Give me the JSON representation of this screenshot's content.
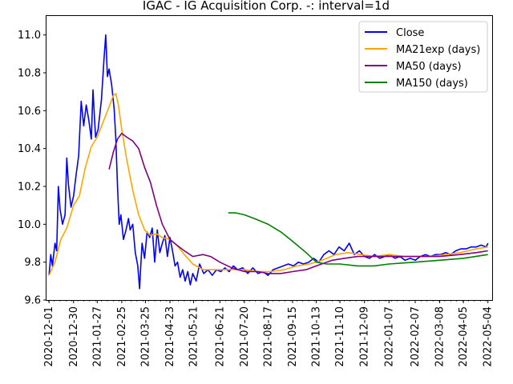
{
  "chart_data": {
    "type": "line",
    "title": "IGAC - IG Acquisition Corp. -: interval=1d",
    "xlabel": "",
    "ylabel": "",
    "ylim": [
      9.6,
      11.1
    ],
    "y_ticks": [
      9.6,
      9.8,
      10.0,
      10.2,
      10.4,
      10.6,
      10.8,
      11.0
    ],
    "x_range": [
      "2020-11-28",
      "2022-05-09"
    ],
    "x_ticks": [
      "2020-12-01",
      "2020-12-30",
      "2021-01-27",
      "2021-02-25",
      "2021-03-25",
      "2021-04-23",
      "2021-05-21",
      "2021-06-21",
      "2021-07-20",
      "2021-08-17",
      "2021-09-15",
      "2021-10-13",
      "2021-11-10",
      "2021-12-09",
      "2022-01-07",
      "2022-02-07",
      "2022-03-08",
      "2022-04-05",
      "2022-05-04"
    ],
    "grid": false,
    "legend": "top-right",
    "series": [
      {
        "name": "Close",
        "color": "#0000ff",
        "points": [
          [
            "2020-12-01",
            9.73
          ],
          [
            "2020-12-03",
            9.84
          ],
          [
            "2020-12-05",
            9.78
          ],
          [
            "2020-12-08",
            9.9
          ],
          [
            "2020-12-10",
            9.86
          ],
          [
            "2020-12-12",
            10.2
          ],
          [
            "2020-12-14",
            10.08
          ],
          [
            "2020-12-17",
            10.0
          ],
          [
            "2020-12-20",
            10.05
          ],
          [
            "2020-12-22",
            10.35
          ],
          [
            "2020-12-24",
            10.21
          ],
          [
            "2020-12-27",
            10.09
          ],
          [
            "2020-12-30",
            10.15
          ],
          [
            "2021-01-02",
            10.26
          ],
          [
            "2021-01-05",
            10.36
          ],
          [
            "2021-01-08",
            10.65
          ],
          [
            "2021-01-11",
            10.52
          ],
          [
            "2021-01-14",
            10.63
          ],
          [
            "2021-01-17",
            10.55
          ],
          [
            "2021-01-20",
            10.45
          ],
          [
            "2021-01-22",
            10.71
          ],
          [
            "2021-01-25",
            10.46
          ],
          [
            "2021-01-28",
            10.5
          ],
          [
            "2021-02-01",
            10.66
          ],
          [
            "2021-02-04",
            10.87
          ],
          [
            "2021-02-06",
            11.0
          ],
          [
            "2021-02-08",
            10.78
          ],
          [
            "2021-02-10",
            10.82
          ],
          [
            "2021-02-13",
            10.74
          ],
          [
            "2021-02-16",
            10.61
          ],
          [
            "2021-02-18",
            10.45
          ],
          [
            "2021-02-20",
            10.2
          ],
          [
            "2021-02-22",
            10.0
          ],
          [
            "2021-02-24",
            10.05
          ],
          [
            "2021-02-27",
            9.92
          ],
          [
            "2021-03-02",
            9.97
          ],
          [
            "2021-03-05",
            10.03
          ],
          [
            "2021-03-07",
            9.97
          ],
          [
            "2021-03-10",
            10.0
          ],
          [
            "2021-03-13",
            9.85
          ],
          [
            "2021-03-16",
            9.78
          ],
          [
            "2021-03-18",
            9.66
          ],
          [
            "2021-03-21",
            9.9
          ],
          [
            "2021-03-24",
            9.82
          ],
          [
            "2021-03-27",
            9.96
          ],
          [
            "2021-03-30",
            9.93
          ],
          [
            "2021-04-02",
            9.98
          ],
          [
            "2021-04-05",
            9.8
          ],
          [
            "2021-04-08",
            9.97
          ],
          [
            "2021-04-11",
            9.85
          ],
          [
            "2021-04-14",
            9.9
          ],
          [
            "2021-04-17",
            9.94
          ],
          [
            "2021-04-20",
            9.83
          ],
          [
            "2021-04-23",
            9.93
          ],
          [
            "2021-04-26",
            9.86
          ],
          [
            "2021-04-29",
            9.78
          ],
          [
            "2021-05-02",
            9.8
          ],
          [
            "2021-05-05",
            9.72
          ],
          [
            "2021-05-08",
            9.76
          ],
          [
            "2021-05-11",
            9.7
          ],
          [
            "2021-05-14",
            9.75
          ],
          [
            "2021-05-17",
            9.68
          ],
          [
            "2021-05-20",
            9.74
          ],
          [
            "2021-05-24",
            9.7
          ],
          [
            "2021-05-28",
            9.79
          ],
          [
            "2021-06-02",
            9.74
          ],
          [
            "2021-06-07",
            9.76
          ],
          [
            "2021-06-12",
            9.73
          ],
          [
            "2021-06-17",
            9.76
          ],
          [
            "2021-06-22",
            9.75
          ],
          [
            "2021-06-27",
            9.77
          ],
          [
            "2021-07-02",
            9.75
          ],
          [
            "2021-07-07",
            9.78
          ],
          [
            "2021-07-12",
            9.76
          ],
          [
            "2021-07-18",
            9.77
          ],
          [
            "2021-07-24",
            9.74
          ],
          [
            "2021-07-30",
            9.77
          ],
          [
            "2021-08-05",
            9.74
          ],
          [
            "2021-08-11",
            9.75
          ],
          [
            "2021-08-17",
            9.73
          ],
          [
            "2021-08-23",
            9.76
          ],
          [
            "2021-08-29",
            9.77
          ],
          [
            "2021-09-04",
            9.78
          ],
          [
            "2021-09-10",
            9.79
          ],
          [
            "2021-09-16",
            9.78
          ],
          [
            "2021-09-22",
            9.8
          ],
          [
            "2021-09-28",
            9.79
          ],
          [
            "2021-10-04",
            9.8
          ],
          [
            "2021-10-10",
            9.82
          ],
          [
            "2021-10-16",
            9.8
          ],
          [
            "2021-10-22",
            9.84
          ],
          [
            "2021-10-28",
            9.86
          ],
          [
            "2021-11-03",
            9.84
          ],
          [
            "2021-11-09",
            9.88
          ],
          [
            "2021-11-15",
            9.86
          ],
          [
            "2021-11-21",
            9.9
          ],
          [
            "2021-11-27",
            9.84
          ],
          [
            "2021-12-03",
            9.86
          ],
          [
            "2021-12-09",
            9.83
          ],
          [
            "2021-12-15",
            9.82
          ],
          [
            "2021-12-21",
            9.84
          ],
          [
            "2021-12-27",
            9.82
          ],
          [
            "2022-01-02",
            9.83
          ],
          [
            "2022-01-08",
            9.84
          ],
          [
            "2022-01-14",
            9.82
          ],
          [
            "2022-01-20",
            9.83
          ],
          [
            "2022-01-26",
            9.81
          ],
          [
            "2022-02-01",
            9.82
          ],
          [
            "2022-02-07",
            9.81
          ],
          [
            "2022-02-13",
            9.83
          ],
          [
            "2022-02-19",
            9.84
          ],
          [
            "2022-02-25",
            9.83
          ],
          [
            "2022-03-03",
            9.84
          ],
          [
            "2022-03-09",
            9.84
          ],
          [
            "2022-03-15",
            9.85
          ],
          [
            "2022-03-21",
            9.84
          ],
          [
            "2022-03-27",
            9.86
          ],
          [
            "2022-04-02",
            9.87
          ],
          [
            "2022-04-08",
            9.87
          ],
          [
            "2022-04-14",
            9.88
          ],
          [
            "2022-04-20",
            9.88
          ],
          [
            "2022-04-26",
            9.89
          ],
          [
            "2022-05-02",
            9.88
          ],
          [
            "2022-05-04",
            9.9
          ]
        ]
      },
      {
        "name": "MA21exp (days)",
        "color": "#ffa500",
        "points": [
          [
            "2020-12-01",
            9.73
          ],
          [
            "2020-12-08",
            9.8
          ],
          [
            "2020-12-15",
            9.92
          ],
          [
            "2020-12-22",
            9.98
          ],
          [
            "2020-12-30",
            10.1
          ],
          [
            "2021-01-06",
            10.15
          ],
          [
            "2021-01-13",
            10.3
          ],
          [
            "2021-01-20",
            10.41
          ],
          [
            "2021-01-27",
            10.46
          ],
          [
            "2021-02-03",
            10.54
          ],
          [
            "2021-02-10",
            10.62
          ],
          [
            "2021-02-15",
            10.68
          ],
          [
            "2021-02-18",
            10.69
          ],
          [
            "2021-02-21",
            10.63
          ],
          [
            "2021-02-25",
            10.5
          ],
          [
            "2021-03-03",
            10.34
          ],
          [
            "2021-03-10",
            10.18
          ],
          [
            "2021-03-17",
            10.05
          ],
          [
            "2021-03-24",
            9.97
          ],
          [
            "2021-03-31",
            9.94
          ],
          [
            "2021-04-07",
            9.95
          ],
          [
            "2021-04-14",
            9.93
          ],
          [
            "2021-04-23",
            9.92
          ],
          [
            "2021-05-01",
            9.89
          ],
          [
            "2021-05-10",
            9.84
          ],
          [
            "2021-05-20",
            9.79
          ],
          [
            "2021-06-01",
            9.76
          ],
          [
            "2021-06-15",
            9.76
          ],
          [
            "2021-07-01",
            9.76
          ],
          [
            "2021-07-20",
            9.76
          ],
          [
            "2021-08-05",
            9.75
          ],
          [
            "2021-08-20",
            9.75
          ],
          [
            "2021-09-05",
            9.76
          ],
          [
            "2021-09-20",
            9.78
          ],
          [
            "2021-10-05",
            9.79
          ],
          [
            "2021-10-20",
            9.81
          ],
          [
            "2021-11-05",
            9.84
          ],
          [
            "2021-11-20",
            9.85
          ],
          [
            "2021-12-05",
            9.84
          ],
          [
            "2021-12-20",
            9.83
          ],
          [
            "2022-01-07",
            9.84
          ],
          [
            "2022-01-25",
            9.83
          ],
          [
            "2022-02-07",
            9.83
          ],
          [
            "2022-02-25",
            9.83
          ],
          [
            "2022-03-15",
            9.84
          ],
          [
            "2022-04-01",
            9.85
          ],
          [
            "2022-04-20",
            9.87
          ],
          [
            "2022-05-04",
            9.88
          ]
        ]
      },
      {
        "name": "MA50 (days)",
        "color": "#800080",
        "points": [
          [
            "2021-02-10",
            10.29
          ],
          [
            "2021-02-15",
            10.38
          ],
          [
            "2021-02-20",
            10.45
          ],
          [
            "2021-02-25",
            10.48
          ],
          [
            "2021-03-03",
            10.46
          ],
          [
            "2021-03-10",
            10.44
          ],
          [
            "2021-03-17",
            10.4
          ],
          [
            "2021-03-24",
            10.3
          ],
          [
            "2021-03-31",
            10.22
          ],
          [
            "2021-04-07",
            10.1
          ],
          [
            "2021-04-14",
            10.0
          ],
          [
            "2021-04-23",
            9.92
          ],
          [
            "2021-05-01",
            9.89
          ],
          [
            "2021-05-10",
            9.86
          ],
          [
            "2021-05-20",
            9.83
          ],
          [
            "2021-06-01",
            9.84
          ],
          [
            "2021-06-10",
            9.83
          ],
          [
            "2021-06-21",
            9.8
          ],
          [
            "2021-07-05",
            9.77
          ],
          [
            "2021-07-20",
            9.75
          ],
          [
            "2021-08-05",
            9.75
          ],
          [
            "2021-08-17",
            9.74
          ],
          [
            "2021-09-01",
            9.74
          ],
          [
            "2021-09-15",
            9.75
          ],
          [
            "2021-10-01",
            9.76
          ],
          [
            "2021-10-13",
            9.78
          ],
          [
            "2021-11-01",
            9.81
          ],
          [
            "2021-11-15",
            9.82
          ],
          [
            "2021-12-01",
            9.83
          ],
          [
            "2021-12-15",
            9.83
          ],
          [
            "2022-01-07",
            9.83
          ],
          [
            "2022-02-01",
            9.83
          ],
          [
            "2022-02-15",
            9.83
          ],
          [
            "2022-03-08",
            9.83
          ],
          [
            "2022-04-01",
            9.84
          ],
          [
            "2022-04-20",
            9.85
          ],
          [
            "2022-05-04",
            9.86
          ]
        ]
      },
      {
        "name": "MA150 (days)",
        "color": "#008000",
        "points": [
          [
            "2021-07-01",
            10.06
          ],
          [
            "2021-07-10",
            10.06
          ],
          [
            "2021-07-20",
            10.05
          ],
          [
            "2021-08-01",
            10.03
          ],
          [
            "2021-08-17",
            10.0
          ],
          [
            "2021-09-01",
            9.96
          ],
          [
            "2021-09-15",
            9.91
          ],
          [
            "2021-10-01",
            9.85
          ],
          [
            "2021-10-13",
            9.8
          ],
          [
            "2021-10-25",
            9.79
          ],
          [
            "2021-11-10",
            9.79
          ],
          [
            "2021-12-01",
            9.78
          ],
          [
            "2021-12-20",
            9.78
          ],
          [
            "2022-01-07",
            9.79
          ],
          [
            "2022-02-07",
            9.8
          ],
          [
            "2022-03-08",
            9.81
          ],
          [
            "2022-04-05",
            9.82
          ],
          [
            "2022-05-04",
            9.84
          ]
        ]
      }
    ]
  }
}
